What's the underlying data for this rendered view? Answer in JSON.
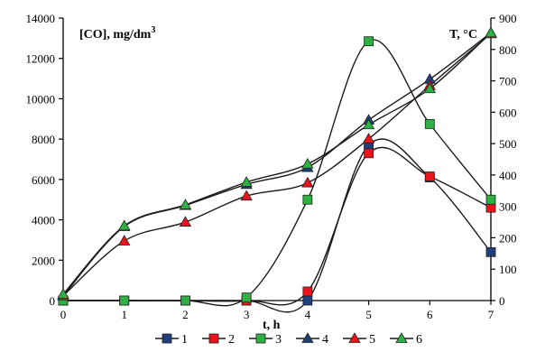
{
  "chart_data": {
    "type": "line",
    "x": [
      0,
      1,
      2,
      3,
      4,
      5,
      6,
      7
    ],
    "xlabel": "t, h",
    "ylabel_left": "[CO], mg/dm",
    "ylabel_left_sup": "3",
    "ylabel_right": "T, °C",
    "xlim": [
      0,
      7
    ],
    "ylim_left": [
      0,
      14000
    ],
    "ylim_right": [
      0,
      900
    ],
    "x_ticks": [
      "0",
      "1",
      "2",
      "3",
      "4",
      "5",
      "6",
      "7"
    ],
    "y_ticks_left": [
      "0",
      "2000",
      "4000",
      "6000",
      "8000",
      "10000",
      "12000",
      "14000"
    ],
    "y_ticks_right": [
      "0",
      "100",
      "200",
      "300",
      "400",
      "500",
      "600",
      "700",
      "800",
      "900"
    ],
    "grid": false,
    "legend_position": "bottom",
    "series": [
      {
        "name": "1",
        "axis": "left",
        "color": "#1f3f7a",
        "marker": "square",
        "values": [
          0,
          0,
          0,
          0,
          0,
          7700,
          6100,
          2400
        ]
      },
      {
        "name": "2",
        "axis": "left",
        "color": "#e8161c",
        "marker": "square",
        "values": [
          0,
          0,
          0,
          0,
          450,
          7300,
          6150,
          4600
        ]
      },
      {
        "name": "3",
        "axis": "left",
        "color": "#2eb043",
        "marker": "square",
        "values": [
          0,
          0,
          0,
          150,
          5000,
          12850,
          8750,
          5000
        ]
      },
      {
        "name": "4",
        "axis": "right",
        "color": "#1f3f7a",
        "marker": "triangle",
        "values": [
          15,
          236,
          303,
          370,
          424,
          575,
          705,
          853
        ]
      },
      {
        "name": "5",
        "axis": "right",
        "color": "#e8161c",
        "marker": "triangle",
        "values": [
          15,
          190,
          250,
          333,
          375,
          515,
          685,
          850
        ]
      },
      {
        "name": "6",
        "axis": "right",
        "color": "#2eb043",
        "marker": "triangle",
        "values": [
          20,
          238,
          305,
          377,
          435,
          560,
          675,
          853
        ]
      }
    ]
  }
}
